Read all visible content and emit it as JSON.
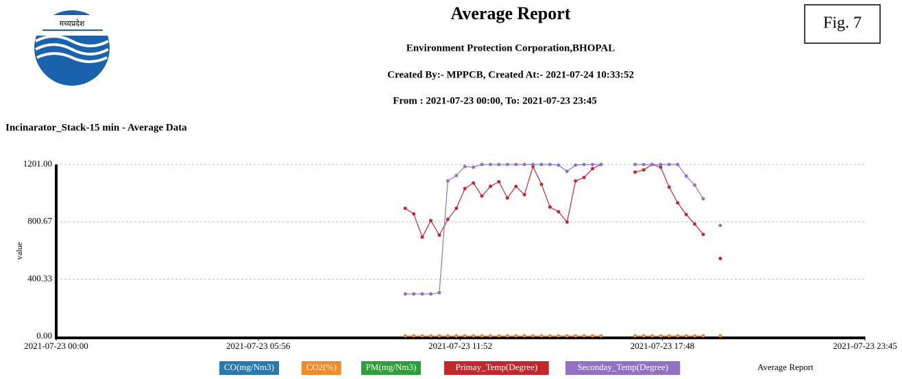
{
  "header": {
    "logo_text": "मध्यप्रदेश",
    "title": "Average Report",
    "organization": "Environment Protection Corporation,BHOPAL",
    "created": "Created By:- MPPCB, Created At:- 2021-07-24 10:33:52",
    "range": "From : 2021-07-23 00:00, To: 2021-07-23 23:45",
    "figure": "Fig. 7"
  },
  "chart_data": {
    "type": "line",
    "title": "Incinarator_Stack-15 min - Average Data",
    "y_label": "value",
    "legend_caption": "Average Report",
    "x": [
      "2021-07-23 10:15",
      "2021-07-23 10:30",
      "2021-07-23 10:45",
      "2021-07-23 11:00",
      "2021-07-23 11:15",
      "2021-07-23 11:30",
      "2021-07-23 11:45",
      "2021-07-23 12:00",
      "2021-07-23 12:15",
      "2021-07-23 12:30",
      "2021-07-23 12:45",
      "2021-07-23 13:00",
      "2021-07-23 13:15",
      "2021-07-23 13:30",
      "2021-07-23 13:45",
      "2021-07-23 14:00",
      "2021-07-23 14:15",
      "2021-07-23 14:30",
      "2021-07-23 14:45",
      "2021-07-23 15:00",
      "2021-07-23 15:15",
      "2021-07-23 15:30",
      "2021-07-23 15:45",
      "2021-07-23 16:00",
      "2021-07-23 16:15",
      "2021-07-23 16:30",
      "2021-07-23 16:45",
      "2021-07-23 17:00",
      "2021-07-23 17:15",
      "2021-07-23 17:30",
      "2021-07-23 17:45",
      "2021-07-23 18:00",
      "2021-07-23 18:15",
      "2021-07-23 18:30",
      "2021-07-23 18:45",
      "2021-07-23 19:00",
      "2021-07-23 19:15",
      "2021-07-23 19:30"
    ],
    "series": [
      {
        "name": "CO(mg/Nm3)",
        "color": "#2b78b0",
        "values": [
          null,
          null,
          null,
          null,
          null,
          null,
          null,
          null,
          null,
          null,
          null,
          null,
          null,
          null,
          null,
          null,
          null,
          null,
          null,
          null,
          null,
          null,
          null,
          null,
          null,
          null,
          null,
          null,
          null,
          null,
          null,
          null,
          null,
          null,
          null,
          null,
          null,
          null
        ]
      },
      {
        "name": "CO2(%)",
        "color": "#f08a2a",
        "values": [
          5,
          5,
          5,
          5,
          5,
          5,
          5,
          5,
          5,
          5,
          5,
          5,
          5,
          5,
          5,
          5,
          5,
          5,
          5,
          5,
          5,
          5,
          5,
          5,
          null,
          null,
          null,
          5,
          5,
          5,
          5,
          5,
          5,
          5,
          5,
          5,
          null,
          5
        ]
      },
      {
        "name": "PM(mg/Nm3)",
        "color": "#2e9e3a",
        "values": [
          null,
          null,
          null,
          null,
          null,
          null,
          null,
          null,
          null,
          null,
          null,
          null,
          null,
          null,
          null,
          null,
          null,
          null,
          null,
          null,
          null,
          null,
          null,
          null,
          null,
          null,
          null,
          null,
          null,
          null,
          null,
          null,
          null,
          null,
          null,
          null,
          null,
          null
        ]
      },
      {
        "name": "Primay_Temp(Degree)",
        "color": "#c0282d",
        "values": [
          895,
          856,
          694,
          809,
          708,
          818,
          895,
          1033,
          1072,
          981,
          1048,
          1081,
          967,
          1048,
          990,
          1187,
          1062,
          904,
          871,
          799,
          1086,
          1110,
          1172,
          1201,
          null,
          null,
          null,
          1148,
          1163,
          1201,
          1182,
          1043,
          933,
          852,
          785,
          713,
          null,
          545
        ]
      },
      {
        "name": "Seconday_Temp(Degree)",
        "color": "#9370c4",
        "values": [
          297,
          297,
          297,
          297,
          306,
          1086,
          1124,
          1187,
          1182,
          1201,
          1201,
          1201,
          1201,
          1201,
          1201,
          1201,
          1201,
          1201,
          1197,
          1153,
          1197,
          1201,
          1201,
          1201,
          null,
          null,
          null,
          1201,
          1201,
          1201,
          1201,
          1201,
          1201,
          1120,
          1057,
          962,
          null,
          775
        ]
      }
    ],
    "xlim": [
      "2021-07-23 00:00",
      "2021-07-23 23:45"
    ],
    "xticks": [
      "2021-07-23 00:00",
      "2021-07-23 05:56",
      "2021-07-23 11:52",
      "2021-07-23 17:48",
      "2021-07-23 23:45"
    ],
    "ylim": [
      0,
      1201
    ],
    "yticks": [
      {
        "value": 0,
        "label": "0.00"
      },
      {
        "value": 400.33,
        "label": "400.33"
      },
      {
        "value": 800.67,
        "label": "800.67"
      },
      {
        "value": 1201,
        "label": "1201.00"
      }
    ],
    "grid": true
  }
}
